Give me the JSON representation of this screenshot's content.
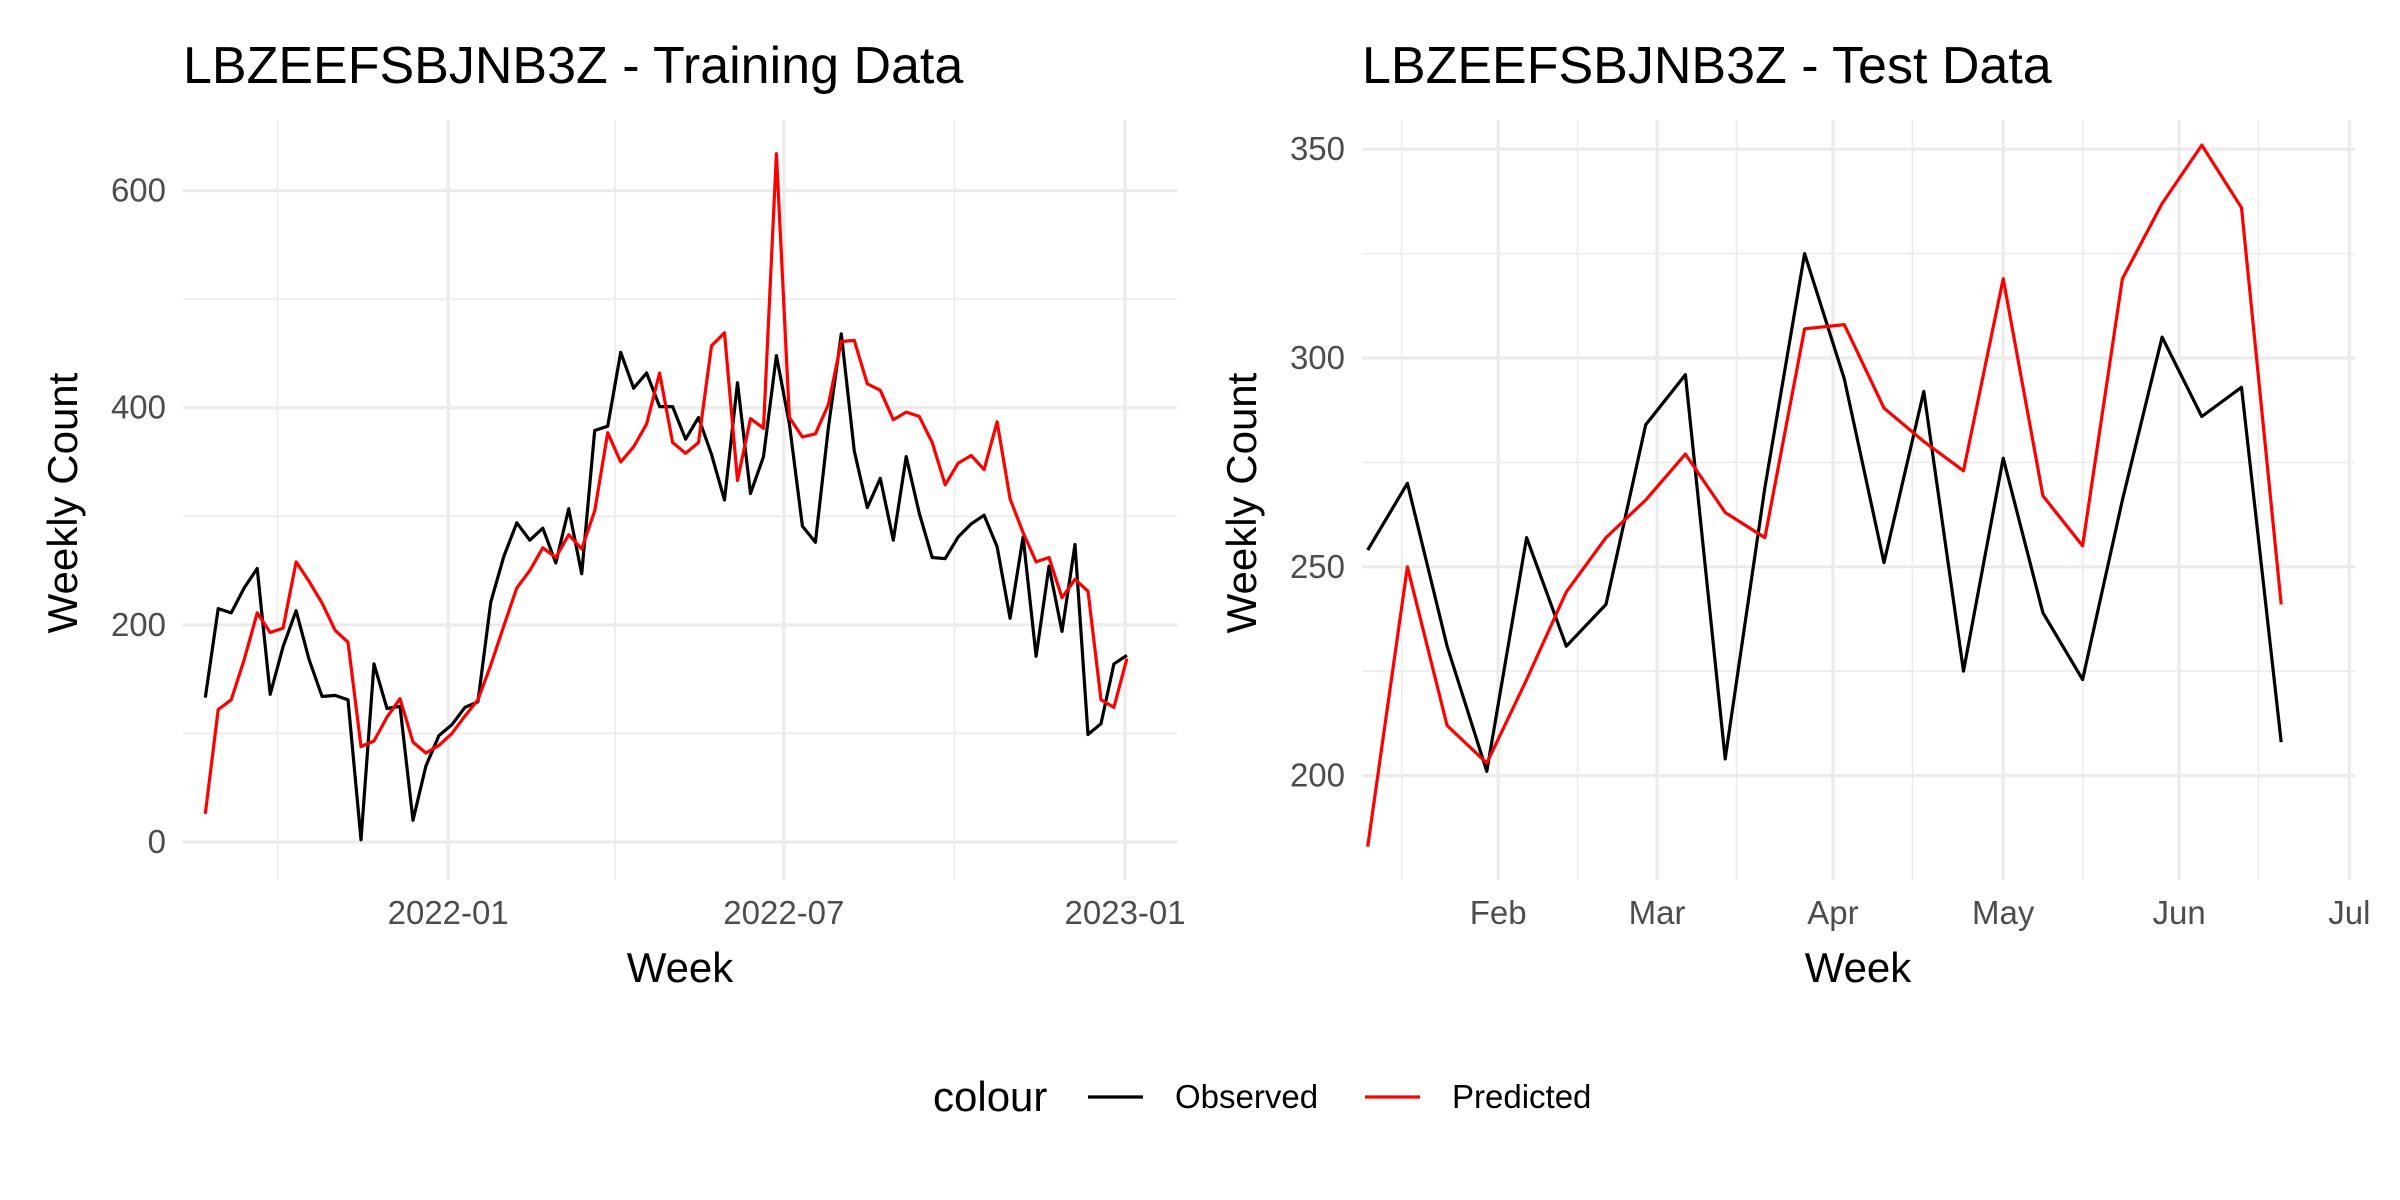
{
  "legend": {
    "title": "colour",
    "items": [
      {
        "label": "Observed",
        "color": "#000000"
      },
      {
        "label": "Predicted",
        "color": "#ff0000"
      }
    ]
  },
  "chart_data": [
    {
      "type": "line",
      "title": "LBZEEFSBJNB3Z - Training Data",
      "xlabel": "Week",
      "ylabel": "Weekly Count",
      "x_axis_type": "date",
      "xlim": [
        "2021-08-11",
        "2023-01-29"
      ],
      "ylim": [
        -35,
        665
      ],
      "x_major_ticks": [
        {
          "date": "2022-01-01",
          "label": "2022-01"
        },
        {
          "date": "2022-07-01",
          "label": "2022-07"
        },
        {
          "date": "2023-01-01",
          "label": "2023-01"
        }
      ],
      "x_minor_ticks": [
        "2021-10-01",
        "2022-04-01",
        "2022-10-01"
      ],
      "y_major_ticks": [
        0,
        200,
        400,
        600
      ],
      "y_minor_ticks": [
        100,
        300,
        500
      ],
      "grid": true,
      "series": [
        {
          "name": "Observed",
          "color": "#000000",
          "points": [
            [
              "2021-08-23",
              133
            ],
            [
              "2021-08-30",
              215
            ],
            [
              "2021-09-06",
              211
            ],
            [
              "2021-09-13",
              234
            ],
            [
              "2021-09-20",
              252
            ],
            [
              "2021-09-27",
              136
            ],
            [
              "2021-10-04",
              180
            ],
            [
              "2021-10-11",
              213
            ],
            [
              "2021-10-18",
              168
            ],
            [
              "2021-10-25",
              134
            ],
            [
              "2021-11-01",
              135
            ],
            [
              "2021-11-08",
              131
            ],
            [
              "2021-11-15",
              2
            ],
            [
              "2021-11-22",
              164
            ],
            [
              "2021-11-29",
              123
            ],
            [
              "2021-12-06",
              125
            ],
            [
              "2021-12-13",
              20
            ],
            [
              "2021-12-20",
              70
            ],
            [
              "2021-12-27",
              98
            ],
            [
              "2022-01-03",
              108
            ],
            [
              "2022-01-10",
              124
            ],
            [
              "2022-01-17",
              129
            ],
            [
              "2022-01-24",
              221
            ],
            [
              "2022-01-31",
              263
            ],
            [
              "2022-02-07",
              294
            ],
            [
              "2022-02-14",
              278
            ],
            [
              "2022-02-21",
              289
            ],
            [
              "2022-02-28",
              257
            ],
            [
              "2022-03-07",
              307
            ],
            [
              "2022-03-14",
              247
            ],
            [
              "2022-03-21",
              379
            ],
            [
              "2022-03-28",
              383
            ],
            [
              "2022-04-04",
              451
            ],
            [
              "2022-04-11",
              418
            ],
            [
              "2022-04-18",
              432
            ],
            [
              "2022-04-25",
              401
            ],
            [
              "2022-05-02",
              401
            ],
            [
              "2022-05-09",
              371
            ],
            [
              "2022-05-16",
              391
            ],
            [
              "2022-05-23",
              357
            ],
            [
              "2022-05-30",
              315
            ],
            [
              "2022-06-06",
              423
            ],
            [
              "2022-06-13",
              321
            ],
            [
              "2022-06-20",
              355
            ],
            [
              "2022-06-27",
              448
            ],
            [
              "2022-07-04",
              385
            ],
            [
              "2022-07-11",
              291
            ],
            [
              "2022-07-18",
              276
            ],
            [
              "2022-07-25",
              382
            ],
            [
              "2022-08-01",
              468
            ],
            [
              "2022-08-08",
              360
            ],
            [
              "2022-08-15",
              308
            ],
            [
              "2022-08-22",
              335
            ],
            [
              "2022-08-29",
              278
            ],
            [
              "2022-09-05",
              355
            ],
            [
              "2022-09-12",
              303
            ],
            [
              "2022-09-19",
              262
            ],
            [
              "2022-09-26",
              261
            ],
            [
              "2022-10-03",
              281
            ],
            [
              "2022-10-10",
              293
            ],
            [
              "2022-10-17",
              301
            ],
            [
              "2022-10-24",
              272
            ],
            [
              "2022-10-31",
              206
            ],
            [
              "2022-11-07",
              281
            ],
            [
              "2022-11-14",
              171
            ],
            [
              "2022-11-21",
              254
            ],
            [
              "2022-11-28",
              194
            ],
            [
              "2022-12-05",
              274
            ],
            [
              "2022-12-12",
              99
            ],
            [
              "2022-12-19",
              109
            ],
            [
              "2022-12-26",
              164
            ],
            [
              "2023-01-02",
              172
            ]
          ]
        },
        {
          "name": "Predicted",
          "color": "#ff0000",
          "points": [
            [
              "2021-08-23",
              26
            ],
            [
              "2021-08-30",
              122
            ],
            [
              "2021-09-06",
              131
            ],
            [
              "2021-09-13",
              168
            ],
            [
              "2021-09-20",
              211
            ],
            [
              "2021-09-27",
              193
            ],
            [
              "2021-10-04",
              197
            ],
            [
              "2021-10-11",
              258
            ],
            [
              "2021-10-18",
              240
            ],
            [
              "2021-10-25",
              220
            ],
            [
              "2021-11-01",
              195
            ],
            [
              "2021-11-08",
              184
            ],
            [
              "2021-11-15",
              88
            ],
            [
              "2021-11-22",
              93
            ],
            [
              "2021-11-29",
              115
            ],
            [
              "2021-12-06",
              132
            ],
            [
              "2021-12-13",
              92
            ],
            [
              "2021-12-20",
              82
            ],
            [
              "2021-12-27",
              89
            ],
            [
              "2022-01-03",
              100
            ],
            [
              "2022-01-10",
              116
            ],
            [
              "2022-01-17",
              131
            ],
            [
              "2022-01-24",
              163
            ],
            [
              "2022-01-31",
              199
            ],
            [
              "2022-02-07",
              234
            ],
            [
              "2022-02-14",
              250
            ],
            [
              "2022-02-21",
              271
            ],
            [
              "2022-02-28",
              262
            ],
            [
              "2022-03-07",
              283
            ],
            [
              "2022-03-14",
              270
            ],
            [
              "2022-03-21",
              305
            ],
            [
              "2022-03-28",
              377
            ],
            [
              "2022-04-04",
              350
            ],
            [
              "2022-04-11",
              364
            ],
            [
              "2022-04-18",
              385
            ],
            [
              "2022-04-25",
              432
            ],
            [
              "2022-05-02",
              368
            ],
            [
              "2022-05-09",
              358
            ],
            [
              "2022-05-16",
              368
            ],
            [
              "2022-05-23",
              457
            ],
            [
              "2022-05-30",
              469
            ],
            [
              "2022-06-06",
              333
            ],
            [
              "2022-06-13",
              390
            ],
            [
              "2022-06-20",
              381
            ],
            [
              "2022-06-27",
              634
            ],
            [
              "2022-07-04",
              391
            ],
            [
              "2022-07-11",
              373
            ],
            [
              "2022-07-18",
              376
            ],
            [
              "2022-07-25",
              403
            ],
            [
              "2022-08-01",
              461
            ],
            [
              "2022-08-08",
              462
            ],
            [
              "2022-08-15",
              422
            ],
            [
              "2022-08-22",
              416
            ],
            [
              "2022-08-29",
              389
            ],
            [
              "2022-09-05",
              396
            ],
            [
              "2022-09-12",
              392
            ],
            [
              "2022-09-19",
              368
            ],
            [
              "2022-09-26",
              329
            ],
            [
              "2022-10-03",
              349
            ],
            [
              "2022-10-10",
              356
            ],
            [
              "2022-10-17",
              343
            ],
            [
              "2022-10-24",
              387
            ],
            [
              "2022-10-31",
              316
            ],
            [
              "2022-11-07",
              285
            ],
            [
              "2022-11-14",
              258
            ],
            [
              "2022-11-21",
              262
            ],
            [
              "2022-11-28",
              225
            ],
            [
              "2022-12-05",
              242
            ],
            [
              "2022-12-12",
              231
            ],
            [
              "2022-12-19",
              131
            ],
            [
              "2022-12-26",
              124
            ],
            [
              "2023-01-02",
              169
            ]
          ]
        }
      ]
    },
    {
      "type": "line",
      "title": "LBZEEFSBJNB3Z - Test Data",
      "xlabel": "Week",
      "ylabel": "Weekly Count",
      "x_axis_type": "date",
      "xlim": [
        "2023-01-08",
        "2023-07-02"
      ],
      "ylim": [
        175,
        357
      ],
      "x_major_ticks": [
        {
          "date": "2023-02-01",
          "label": "Feb"
        },
        {
          "date": "2023-03-01",
          "label": "Mar"
        },
        {
          "date": "2023-04-01",
          "label": "Apr"
        },
        {
          "date": "2023-05-01",
          "label": "May"
        },
        {
          "date": "2023-06-01",
          "label": "Jun"
        },
        {
          "date": "2023-07-01",
          "label": "Jul"
        }
      ],
      "x_minor_ticks": [
        "2023-01-15",
        "2023-02-15",
        "2023-03-15",
        "2023-04-15",
        "2023-05-15",
        "2023-06-15"
      ],
      "y_major_ticks": [
        200,
        250,
        300,
        350
      ],
      "y_minor_ticks": [
        225,
        275,
        325
      ],
      "grid": true,
      "series": [
        {
          "name": "Observed",
          "color": "#000000",
          "points": [
            [
              "2023-01-09",
              254
            ],
            [
              "2023-01-16",
              270
            ],
            [
              "2023-01-23",
              231
            ],
            [
              "2023-01-30",
              201
            ],
            [
              "2023-02-06",
              257
            ],
            [
              "2023-02-13",
              231
            ],
            [
              "2023-02-20",
              241
            ],
            [
              "2023-02-27",
              284
            ],
            [
              "2023-03-06",
              296
            ],
            [
              "2023-03-13",
              204
            ],
            [
              "2023-03-20",
              269
            ],
            [
              "2023-03-27",
              325
            ],
            [
              "2023-04-03",
              295
            ],
            [
              "2023-04-10",
              251
            ],
            [
              "2023-04-17",
              292
            ],
            [
              "2023-04-24",
              225
            ],
            [
              "2023-05-01",
              276
            ],
            [
              "2023-05-08",
              239
            ],
            [
              "2023-05-15",
              223
            ],
            [
              "2023-05-22",
              266
            ],
            [
              "2023-05-29",
              305
            ],
            [
              "2023-06-05",
              286
            ],
            [
              "2023-06-12",
              293
            ],
            [
              "2023-06-19",
              208
            ]
          ]
        },
        {
          "name": "Predicted",
          "color": "#ff0000",
          "points": [
            [
              "2023-01-09",
              183
            ],
            [
              "2023-01-16",
              250
            ],
            [
              "2023-01-23",
              212
            ],
            [
              "2023-01-30",
              203
            ],
            [
              "2023-02-06",
              223
            ],
            [
              "2023-02-13",
              244
            ],
            [
              "2023-02-20",
              257
            ],
            [
              "2023-02-27",
              266
            ],
            [
              "2023-03-06",
              277
            ],
            [
              "2023-03-13",
              263
            ],
            [
              "2023-03-20",
              257
            ],
            [
              "2023-03-27",
              307
            ],
            [
              "2023-04-03",
              308
            ],
            [
              "2023-04-10",
              288
            ],
            [
              "2023-04-17",
              280
            ],
            [
              "2023-04-24",
              273
            ],
            [
              "2023-05-01",
              319
            ],
            [
              "2023-05-08",
              267
            ],
            [
              "2023-05-15",
              255
            ],
            [
              "2023-05-22",
              319
            ],
            [
              "2023-05-29",
              337
            ],
            [
              "2023-06-05",
              351
            ],
            [
              "2023-06-12",
              336
            ],
            [
              "2023-06-19",
              241
            ]
          ]
        }
      ]
    }
  ]
}
